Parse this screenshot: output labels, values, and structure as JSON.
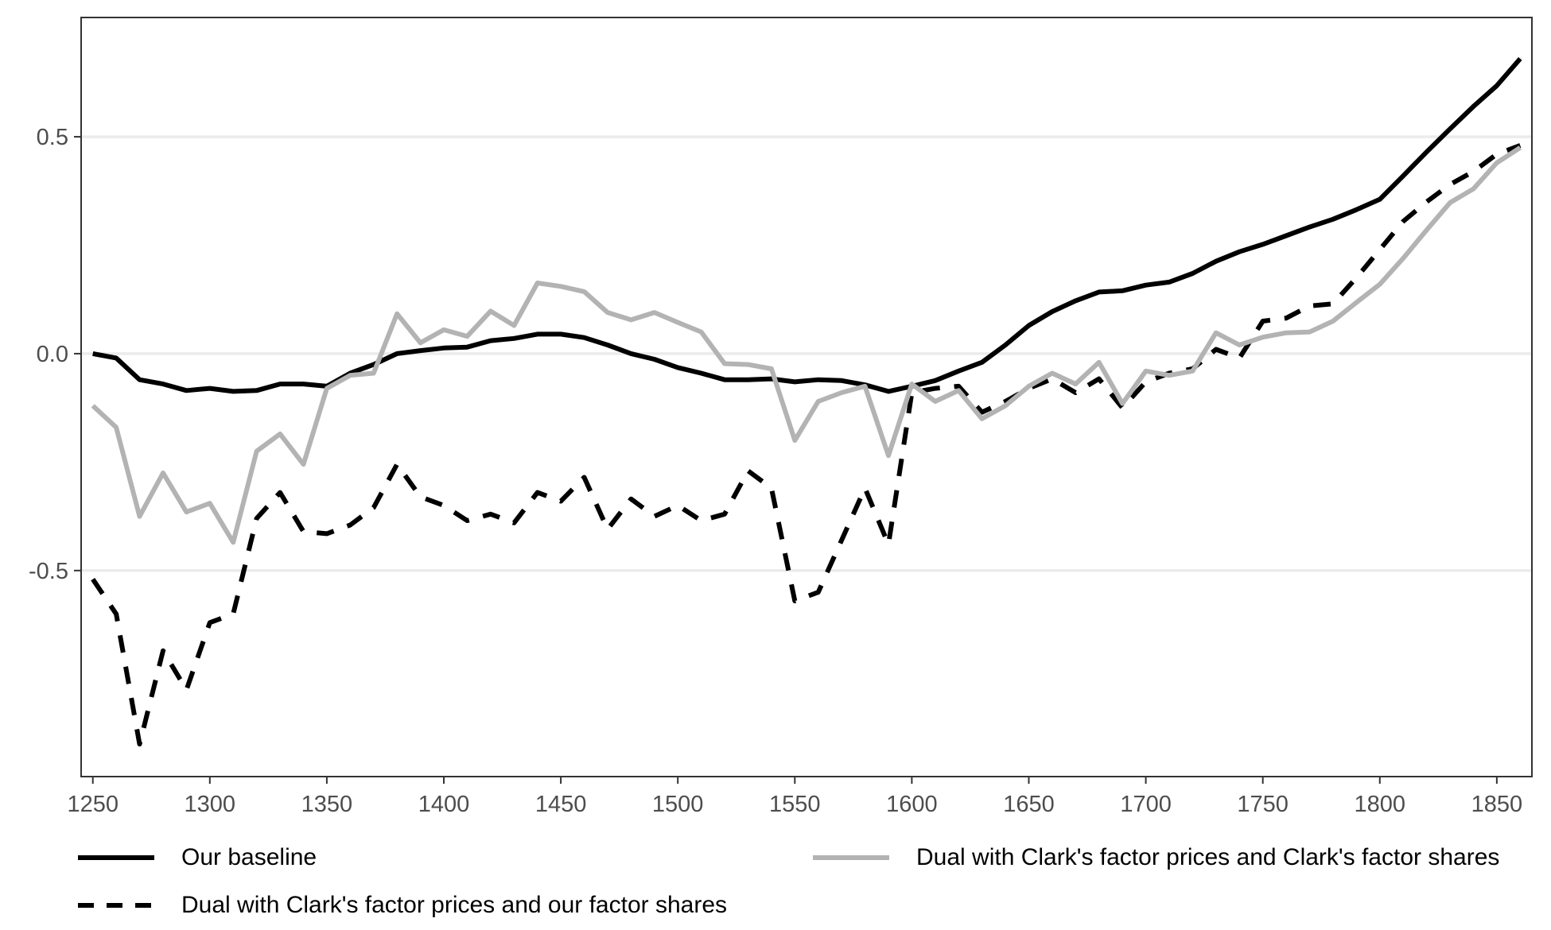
{
  "chart_data": {
    "type": "line",
    "title": "",
    "xlabel": "",
    "ylabel": "",
    "xlim": [
      1245,
      1865
    ],
    "ylim": [
      -0.975,
      0.775
    ],
    "x_ticks": [
      1250,
      1300,
      1350,
      1400,
      1450,
      1500,
      1550,
      1600,
      1650,
      1700,
      1750,
      1800,
      1850
    ],
    "x_tick_labels": [
      "1250",
      "1300",
      "1350",
      "1400",
      "1450",
      "1500",
      "1550",
      "1600",
      "1650",
      "1700",
      "1750",
      "1800",
      "1850"
    ],
    "y_ticks": [
      -0.5,
      0.0,
      0.5
    ],
    "y_tick_labels": [
      "-0.5",
      "0.0",
      "0.5"
    ],
    "grid": "horizontal major",
    "legend_position": "bottom",
    "x": [
      1250,
      1260,
      1270,
      1280,
      1290,
      1300,
      1310,
      1320,
      1330,
      1340,
      1350,
      1360,
      1370,
      1380,
      1390,
      1400,
      1410,
      1420,
      1430,
      1440,
      1450,
      1460,
      1470,
      1480,
      1490,
      1500,
      1510,
      1520,
      1530,
      1540,
      1550,
      1560,
      1570,
      1580,
      1590,
      1600,
      1610,
      1620,
      1630,
      1640,
      1650,
      1660,
      1670,
      1680,
      1690,
      1700,
      1710,
      1720,
      1730,
      1740,
      1750,
      1760,
      1770,
      1780,
      1790,
      1800,
      1810,
      1820,
      1830,
      1840,
      1850,
      1860
    ],
    "series": [
      {
        "name": "Our baseline",
        "style": "solid",
        "color": "#000000",
        "values": [
          0.0,
          -0.01,
          -0.06,
          -0.07,
          -0.085,
          -0.08,
          -0.087,
          -0.085,
          -0.07,
          -0.07,
          -0.075,
          -0.045,
          -0.025,
          0.0,
          0.007,
          0.013,
          0.015,
          0.03,
          0.035,
          0.045,
          0.045,
          0.037,
          0.02,
          0.0,
          -0.013,
          -0.032,
          -0.045,
          -0.06,
          -0.06,
          -0.058,
          -0.065,
          -0.06,
          -0.062,
          -0.072,
          -0.087,
          -0.075,
          -0.062,
          -0.04,
          -0.02,
          0.02,
          0.065,
          0.097,
          0.122,
          0.142,
          0.145,
          0.158,
          0.165,
          0.185,
          0.213,
          0.235,
          0.252,
          0.272,
          0.292,
          0.31,
          0.332,
          0.356,
          0.41,
          0.465,
          0.518,
          0.57,
          0.618,
          0.68
        ]
      },
      {
        "name": "Dual with Clark's factor prices and Clark's factor shares",
        "style": "solid",
        "color": "#b3b3b3",
        "values": [
          -0.12,
          -0.17,
          -0.375,
          -0.275,
          -0.365,
          -0.345,
          -0.435,
          -0.225,
          -0.185,
          -0.255,
          -0.08,
          -0.05,
          -0.045,
          0.092,
          0.025,
          0.055,
          0.04,
          0.098,
          0.065,
          0.163,
          0.155,
          0.143,
          0.095,
          0.078,
          0.095,
          0.072,
          0.05,
          -0.023,
          -0.025,
          -0.035,
          -0.2,
          -0.11,
          -0.09,
          -0.075,
          -0.235,
          -0.07,
          -0.11,
          -0.085,
          -0.15,
          -0.12,
          -0.075,
          -0.045,
          -0.07,
          -0.02,
          -0.115,
          -0.04,
          -0.05,
          -0.04,
          0.048,
          0.02,
          0.038,
          0.048,
          0.05,
          0.075,
          0.118,
          0.16,
          0.22,
          0.285,
          0.348,
          0.38,
          0.44,
          0.475
        ]
      },
      {
        "name": "Dual with Clark's factor prices and our factor shares",
        "style": "dashed",
        "color": "#000000",
        "values": [
          -0.52,
          -0.6,
          -0.9,
          -0.685,
          -0.775,
          -0.62,
          -0.6,
          -0.38,
          -0.32,
          -0.41,
          -0.415,
          -0.395,
          -0.355,
          -0.255,
          -0.33,
          -0.35,
          -0.385,
          -0.37,
          -0.39,
          -0.32,
          -0.34,
          -0.285,
          -0.405,
          -0.335,
          -0.375,
          -0.35,
          -0.385,
          -0.37,
          -0.27,
          -0.31,
          -0.57,
          -0.55,
          -0.43,
          -0.31,
          -0.44,
          -0.09,
          -0.08,
          -0.075,
          -0.135,
          -0.11,
          -0.08,
          -0.058,
          -0.09,
          -0.058,
          -0.125,
          -0.065,
          -0.045,
          -0.035,
          0.01,
          -0.01,
          0.075,
          0.082,
          0.11,
          0.115,
          0.175,
          0.24,
          0.305,
          0.35,
          0.39,
          0.42,
          0.46,
          0.48
        ]
      }
    ]
  },
  "legend": {
    "items": [
      {
        "label": "Our baseline",
        "style": "solid",
        "color": "#000000"
      },
      {
        "label": "Dual with Clark's factor prices and Clark's factor shares",
        "style": "solid",
        "color": "#b3b3b3"
      },
      {
        "label": "Dual with Clark's factor prices and our factor shares",
        "style": "dashed",
        "color": "#000000"
      }
    ]
  },
  "colors": {
    "panel_border": "#333333",
    "grid": "#ebebeb",
    "tick_text": "#4d4d4d",
    "background": "#ffffff"
  }
}
